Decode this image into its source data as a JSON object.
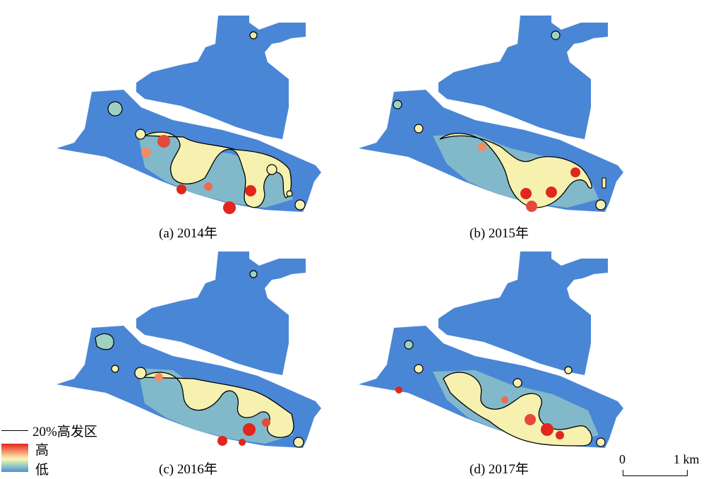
{
  "panels": [
    {
      "caption": "(a) 2014年"
    },
    {
      "caption": "(b) 2015年"
    },
    {
      "caption": "(c) 2016年"
    },
    {
      "caption": "(d) 2017年"
    }
  ],
  "legend": {
    "line_label": "20%高发区",
    "high_label": "高",
    "low_label": "低"
  },
  "scale_bar": {
    "start": "0",
    "end": "1 km"
  },
  "colors": {
    "low": "#4a86d6",
    "mid_low": "#9fd1c0",
    "mid": "#fbf5b4",
    "mid_high": "#f6c08a",
    "high": "#e1261c",
    "contour": "#000000"
  }
}
